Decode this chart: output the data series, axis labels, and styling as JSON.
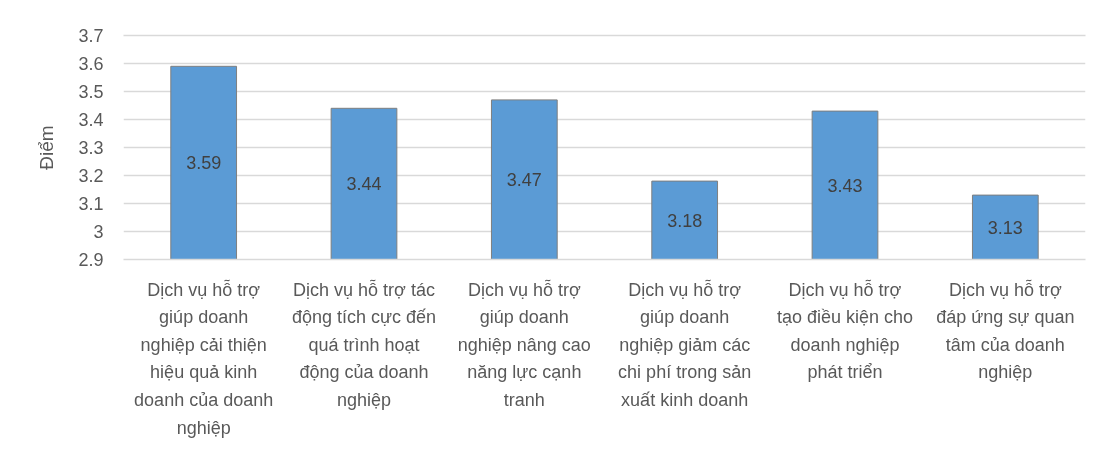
{
  "chart_data": {
    "type": "bar",
    "ylabel": "Điểm",
    "categories": [
      "Dịch vụ hỗ trợ giúp doanh nghiệp cải thiện hiệu quả kinh doanh của doanh nghiệp",
      "Dịch vụ hỗ trợ tác động tích cực đến quá trình hoạt động của doanh nghiệp",
      "Dịch vụ hỗ trợ giúp doanh nghiệp nâng cao năng lực cạnh tranh",
      "Dịch vụ hỗ trợ giúp doanh nghiệp giảm các chi phí trong sản xuất kinh doanh",
      "Dịch vụ hỗ trợ tạo điều kiện cho doanh nghiệp phát triển",
      "Dịch vụ hỗ trợ đáp ứng sự quan tâm của doanh nghiệp"
    ],
    "values": [
      3.59,
      3.44,
      3.47,
      3.18,
      3.43,
      3.13
    ],
    "color": "#5b9bd5",
    "ylim": [
      2.9,
      3.7
    ],
    "yticks": [
      2.9,
      3,
      3.1,
      3.2,
      3.3,
      3.4,
      3.5,
      3.6,
      3.7
    ],
    "grid": "y",
    "data_labels": true
  }
}
